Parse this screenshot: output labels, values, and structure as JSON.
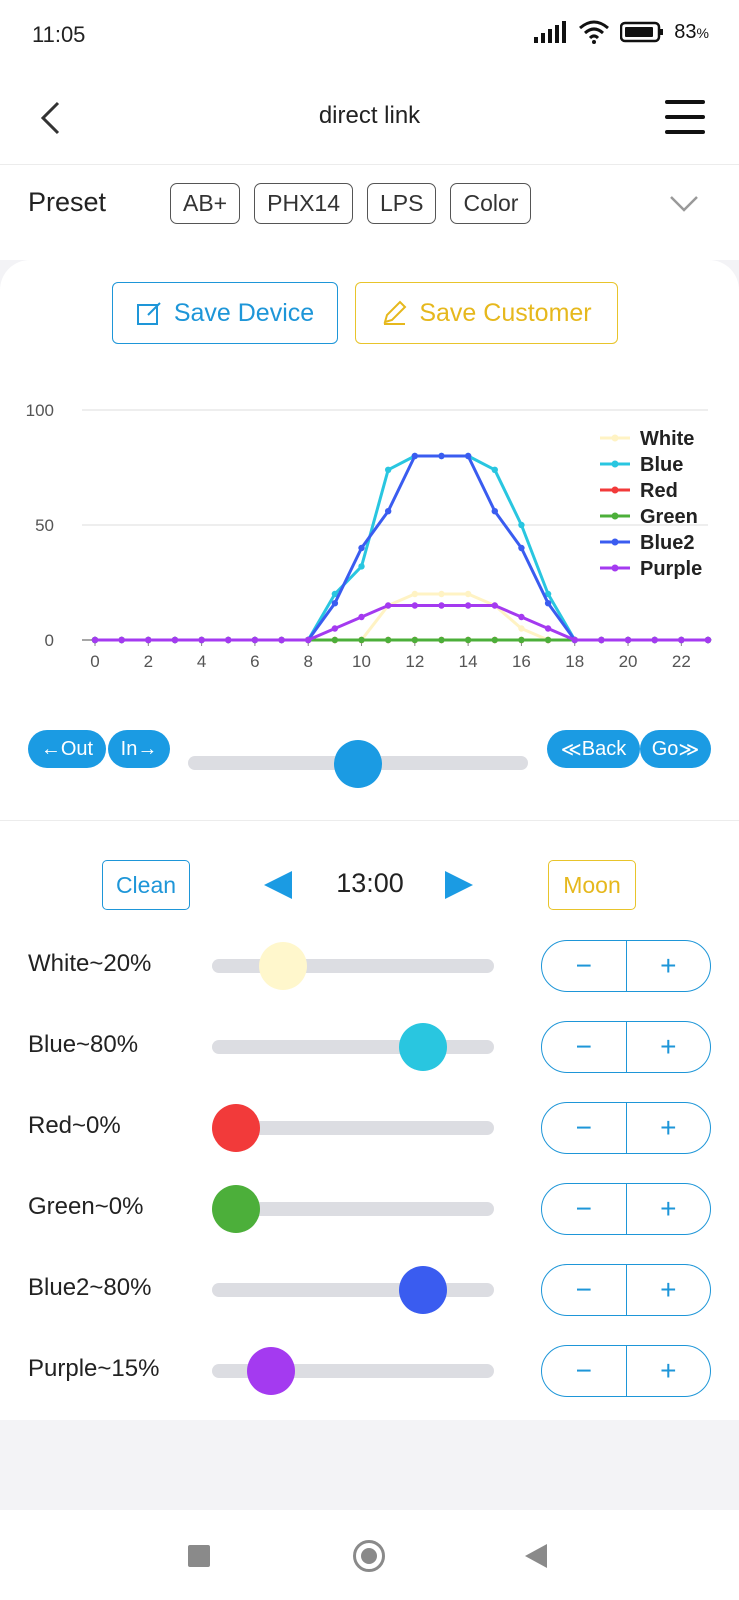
{
  "status": {
    "time": "11:05",
    "battery": "83",
    "battery_unit": "%"
  },
  "header": {
    "title": "direct link"
  },
  "preset": {
    "label": "Preset",
    "chips": [
      "AB+",
      "PHX14",
      "LPS",
      "Color"
    ]
  },
  "actions": {
    "save_device": "Save Device",
    "save_customer": "Save Customer"
  },
  "timeline": {
    "out": "Out",
    "in": "In",
    "back": "Back",
    "go": "Go",
    "position": 0.5
  },
  "schedule": {
    "clean": "Clean",
    "moon": "Moon",
    "time": "13:00"
  },
  "channels": [
    {
      "label": "White~20%",
      "value": 20,
      "color": "#fff7cc",
      "minus": "−",
      "plus": "+"
    },
    {
      "label": "Blue~80%",
      "value": 80,
      "color": "#29c6e0",
      "minus": "−",
      "plus": "+"
    },
    {
      "label": "Red~0%",
      "value": 0,
      "color": "#f23a3a",
      "minus": "−",
      "plus": "+"
    },
    {
      "label": "Green~0%",
      "value": 0,
      "color": "#4caf3a",
      "minus": "−",
      "plus": "+"
    },
    {
      "label": "Blue2~80%",
      "value": 80,
      "color": "#3a5cf0",
      "minus": "−",
      "plus": "+"
    },
    {
      "label": "Purple~15%",
      "value": 15,
      "color": "#a43af0",
      "minus": "−",
      "plus": "+"
    }
  ],
  "chart_data": {
    "type": "line",
    "x": [
      0,
      1,
      2,
      3,
      4,
      5,
      6,
      7,
      8,
      9,
      10,
      11,
      12,
      13,
      14,
      15,
      16,
      17,
      18,
      19,
      20,
      21,
      22,
      23
    ],
    "x_ticks": [
      "0",
      "2",
      "4",
      "6",
      "8",
      "10",
      "12",
      "14",
      "16",
      "18",
      "20",
      "22"
    ],
    "y_ticks": [
      "0",
      "50",
      "100"
    ],
    "ylim": [
      0,
      100
    ],
    "xlim": [
      0,
      23
    ],
    "legend_position": "top-right",
    "series": [
      {
        "name": "White",
        "color": "#fff3c4",
        "values": [
          0,
          0,
          0,
          0,
          0,
          0,
          0,
          0,
          0,
          0,
          0,
          15,
          20,
          20,
          20,
          15,
          5,
          0,
          0,
          0,
          0,
          0,
          0,
          0
        ]
      },
      {
        "name": "Blue",
        "color": "#29c6e0",
        "values": [
          0,
          0,
          0,
          0,
          0,
          0,
          0,
          0,
          0,
          20,
          32,
          74,
          80,
          80,
          80,
          74,
          50,
          20,
          0,
          0,
          0,
          0,
          0,
          0
        ]
      },
      {
        "name": "Red",
        "color": "#f23a3a",
        "values": [
          0,
          0,
          0,
          0,
          0,
          0,
          0,
          0,
          0,
          0,
          0,
          0,
          0,
          0,
          0,
          0,
          0,
          0,
          0,
          0,
          0,
          0,
          0,
          0
        ]
      },
      {
        "name": "Green",
        "color": "#4caf3a",
        "values": [
          0,
          0,
          0,
          0,
          0,
          0,
          0,
          0,
          0,
          0,
          0,
          0,
          0,
          0,
          0,
          0,
          0,
          0,
          0,
          0,
          0,
          0,
          0,
          0
        ]
      },
      {
        "name": "Blue2",
        "color": "#3a5cf0",
        "values": [
          0,
          0,
          0,
          0,
          0,
          0,
          0,
          0,
          0,
          16,
          40,
          56,
          80,
          80,
          80,
          56,
          40,
          16,
          0,
          0,
          0,
          0,
          0,
          0
        ]
      },
      {
        "name": "Purple",
        "color": "#a43af0",
        "values": [
          0,
          0,
          0,
          0,
          0,
          0,
          0,
          0,
          0,
          5,
          10,
          15,
          15,
          15,
          15,
          15,
          10,
          5,
          0,
          0,
          0,
          0,
          0,
          0
        ]
      }
    ]
  }
}
